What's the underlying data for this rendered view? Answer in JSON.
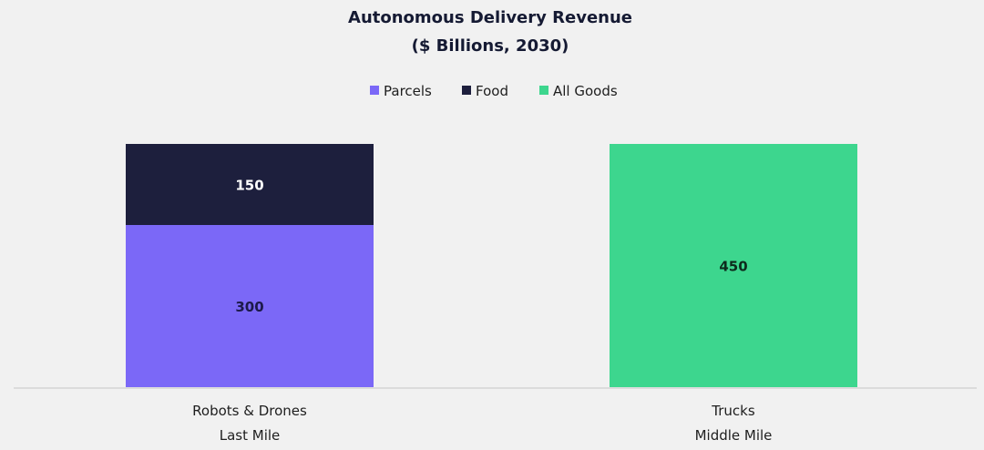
{
  "chart_data": {
    "type": "bar",
    "stacked": true,
    "title": "Autonomous Delivery Revenue",
    "subtitle": "($ Billions, 2030)",
    "categories": [
      [
        "Robots & Drones",
        "Last Mile"
      ],
      [
        "Trucks",
        "Middle Mile"
      ]
    ],
    "series": [
      {
        "name": "Parcels",
        "color": "#7b68f7",
        "label_color": "#1c1a4a",
        "values": [
          300,
          0
        ]
      },
      {
        "name": "Food",
        "color": "#1d1f3d",
        "label_color": "#ffffff",
        "values": [
          150,
          0
        ]
      },
      {
        "name": "All Goods",
        "color": "#3dd68e",
        "label_color": "#0d2a1c",
        "values": [
          0,
          450
        ]
      }
    ],
    "ylim": [
      0,
      450
    ],
    "grid": false,
    "legend_position": "top-center",
    "baseline_color": "#dcdcdc"
  }
}
